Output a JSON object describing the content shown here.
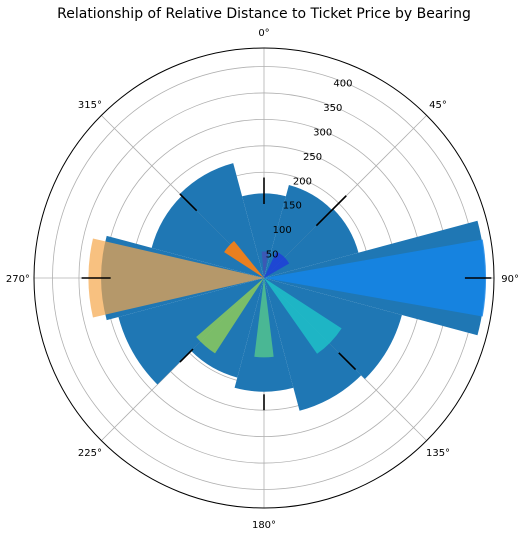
{
  "chart_data": {
    "type": "polar-bar",
    "title": "Relationship of Relative Distance to Ticket Price by Bearing",
    "theta_direction": "clockwise",
    "theta_zero": "top",
    "theta_tick_labels": [
      "0°",
      "45°",
      "90°",
      "135°",
      "180°",
      "225°",
      "270°",
      "315°"
    ],
    "theta_ticks": [
      0,
      45,
      90,
      135,
      180,
      225,
      270,
      315
    ],
    "r_ticks": [
      50,
      100,
      150,
      200,
      250,
      300,
      350,
      400
    ],
    "r_tick_labels": [
      "50",
      "100",
      "150",
      "200",
      "250",
      "300",
      "350",
      "400"
    ],
    "rlim": [
      0,
      435
    ],
    "grid": true,
    "background_series": {
      "color": "#1f77b4",
      "bin_width_deg": 30,
      "bars": [
        {
          "theta": 0,
          "r": 160
        },
        {
          "theta": 30,
          "r": 182
        },
        {
          "theta": 60,
          "r": 185
        },
        {
          "theta": 90,
          "r": 418
        },
        {
          "theta": 120,
          "r": 270
        },
        {
          "theta": 150,
          "r": 260
        },
        {
          "theta": 180,
          "r": 215
        },
        {
          "theta": 210,
          "r": 195
        },
        {
          "theta": 240,
          "r": 285
        },
        {
          "theta": 270,
          "r": 308
        },
        {
          "theta": 300,
          "r": 220
        },
        {
          "theta": 330,
          "r": 225
        }
      ]
    },
    "foreground_series": [
      {
        "theta_start": -5,
        "theta_end": 10,
        "r": 50,
        "color": "#3e55b5",
        "opacity": 0.9
      },
      {
        "theta_start": 25,
        "theta_end": 60,
        "r": 55,
        "color": "#1e3ed8",
        "opacity": 0.85
      },
      {
        "theta_start": 80,
        "theta_end": 100,
        "r": 420,
        "color": "#1585e8",
        "opacity": 0.85
      },
      {
        "theta_start": 123,
        "theta_end": 145,
        "r": 175,
        "color": "#1fc0c8",
        "opacity": 0.85
      },
      {
        "theta_start": 173,
        "theta_end": 187,
        "r": 150,
        "color": "#52c28e",
        "opacity": 0.85
      },
      {
        "theta_start": 213,
        "theta_end": 229,
        "r": 170,
        "color": "#8cc95a",
        "opacity": 0.85
      },
      {
        "theta_start": 257,
        "theta_end": 283,
        "r": 332,
        "color": "#f5a64a",
        "opacity": 0.7
      },
      {
        "theta_start": 303,
        "theta_end": 321,
        "r": 90,
        "color": "#ff7f0e",
        "opacity": 0.9
      }
    ],
    "errorbars": [
      {
        "theta": 0,
        "r_low": 140,
        "r_high": 190
      },
      {
        "theta": 45,
        "r_low": 140,
        "r_high": 220
      },
      {
        "theta": 90,
        "r_low": 380,
        "r_high": 430
      },
      {
        "theta": 135,
        "r_low": 200,
        "r_high": 245
      },
      {
        "theta": 180,
        "r_low": 220,
        "r_high": 250
      },
      {
        "theta": 225,
        "r_low": 190,
        "r_high": 225
      },
      {
        "theta": 270,
        "r_low": 290,
        "r_high": 345
      },
      {
        "theta": 315,
        "r_low": 180,
        "r_high": 225
      }
    ]
  }
}
